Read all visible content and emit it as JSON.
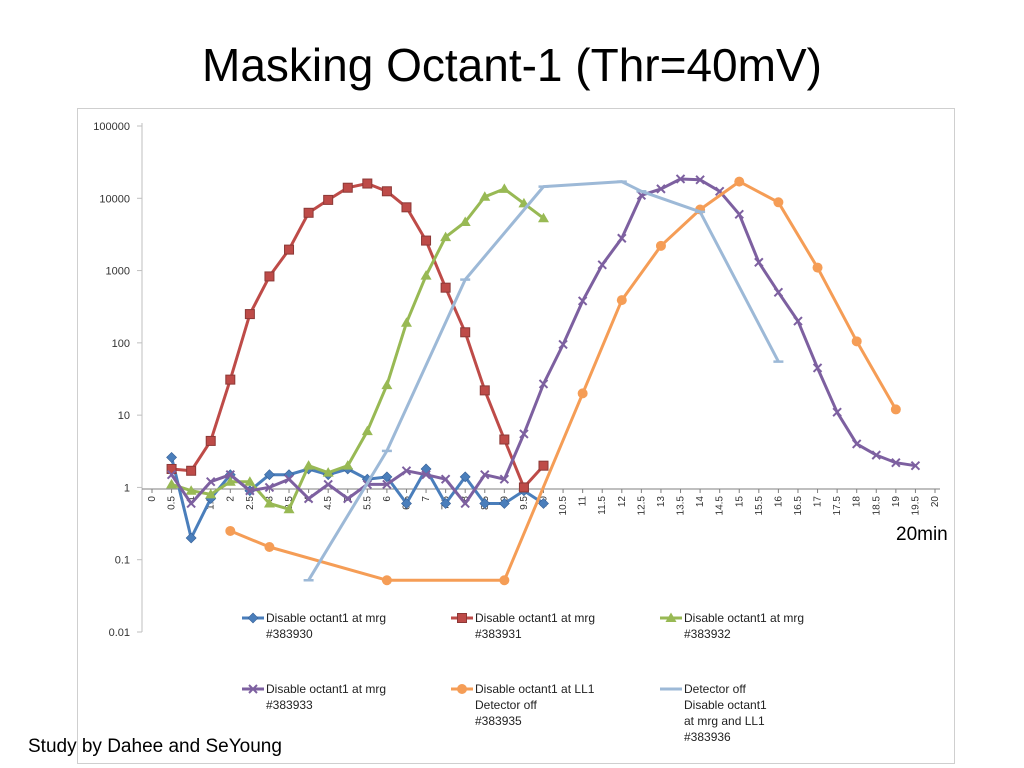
{
  "slide": {
    "title": "Masking Octant-1 (Thr=40mV)",
    "unit_note": "20min",
    "credit": "Study by Dahee and SeYoung"
  },
  "chart_data": {
    "type": "line",
    "yscale": "log",
    "ylim": [
      0.01,
      100000
    ],
    "yticks": [
      "0.01",
      "0.1",
      "1",
      "10",
      "100",
      "1000",
      "10000",
      "100000"
    ],
    "xlim": [
      0,
      20
    ],
    "xticks": [
      "0",
      "0.5",
      "1",
      "1.5",
      "2",
      "2.5",
      "3",
      "3.5",
      "4",
      "4.5",
      "5",
      "5.5",
      "6",
      "6.5",
      "7",
      "7.5",
      "8",
      "8.5",
      "9",
      "9.5",
      "10",
      "10.5",
      "11",
      "11.5",
      "12",
      "12.5",
      "13",
      "13.5",
      "14",
      "14.5",
      "15",
      "15.5",
      "16",
      "16.5",
      "17",
      "17.5",
      "18",
      "18.5",
      "19",
      "19.5",
      "20"
    ],
    "legend_position": "bottom",
    "series": [
      {
        "name": "Disable octant1 at mrg #383930",
        "legend_lines": [
          "Disable octant1 at mrg",
          "#383930"
        ],
        "color": "#4a7ebb",
        "marker": "diamond",
        "x": [
          0.5,
          1,
          1.5,
          2,
          2.5,
          3,
          3.5,
          4,
          4.5,
          5,
          5.5,
          6,
          6.5,
          7,
          7.5,
          8,
          8.5,
          9,
          9.5,
          10
        ],
        "y": [
          2.6,
          0.2,
          0.7,
          1.5,
          0.9,
          1.5,
          1.5,
          1.8,
          1.5,
          1.8,
          1.3,
          1.4,
          0.6,
          1.8,
          0.6,
          1.4,
          0.6,
          0.6,
          0.9,
          0.6
        ]
      },
      {
        "name": "Disable octant1 at mrg #383931",
        "legend_lines": [
          "Disable octant1 at mrg",
          "#383931"
        ],
        "color": "#be4b48",
        "marker": "square",
        "x": [
          0.5,
          1,
          1.5,
          2,
          2.5,
          3,
          3.5,
          4,
          4.5,
          5,
          5.5,
          6,
          6.5,
          7,
          7.5,
          8,
          8.5,
          9,
          9.5,
          10
        ],
        "y": [
          1.8,
          1.7,
          4.4,
          31,
          250,
          830,
          1950,
          6300,
          9500,
          14000,
          16000,
          12500,
          7500,
          2600,
          580,
          140,
          22,
          4.6,
          1.0,
          2.0
        ]
      },
      {
        "name": "Disable octant1 at mrg #383932",
        "legend_lines": [
          "Disable octant1 at mrg",
          "#383932"
        ],
        "color": "#98b954",
        "marker": "triangle",
        "x": [
          0.5,
          1,
          1.5,
          2,
          2.5,
          3,
          3.5,
          4,
          4.5,
          5,
          5.5,
          6,
          6.5,
          7,
          7.5,
          8,
          8.5,
          9,
          9.5,
          10
        ],
        "y": [
          1.1,
          0.9,
          0.8,
          1.2,
          1.2,
          0.6,
          0.5,
          2.0,
          1.6,
          2.0,
          6.0,
          26,
          190,
          850,
          2900,
          4700,
          10500,
          13500,
          8500,
          5300
        ]
      },
      {
        "name": "Disable octant1 at mrg #383933",
        "legend_lines": [
          "Disable octant1 at mrg",
          "#383933"
        ],
        "color": "#7d60a0",
        "marker": "x",
        "x": [
          0.5,
          1,
          1.5,
          2,
          2.5,
          3,
          3.5,
          4,
          4.5,
          5,
          5.5,
          6,
          6.5,
          7,
          7.5,
          8,
          8.5,
          9,
          9.5,
          10,
          10.5,
          11,
          11.5,
          12,
          12.5,
          13,
          13.5,
          14,
          14.5,
          15,
          15.5,
          16,
          16.5,
          17,
          17.5,
          18,
          18.5,
          19,
          19.5
        ],
        "y": [
          1.5,
          0.6,
          1.2,
          1.5,
          0.9,
          1.0,
          1.3,
          0.7,
          1.1,
          0.7,
          1.1,
          1.1,
          1.7,
          1.5,
          1.3,
          0.6,
          1.5,
          1.3,
          5.5,
          27,
          95,
          380,
          1200,
          2800,
          11000,
          13500,
          18500,
          18000,
          12500,
          6000,
          1300,
          500,
          200,
          45,
          11,
          4.0,
          2.8,
          2.2,
          2.0
        ]
      },
      {
        "name": "Disable octant1 at LL1 Detector off #383935",
        "legend_lines": [
          "Disable octant1 at LL1",
          "Detector off",
          "#383935"
        ],
        "color": "#f59d56",
        "marker": "circle",
        "x": [
          2,
          3,
          6,
          9,
          11,
          12,
          13,
          14,
          15,
          16,
          17,
          18,
          19
        ],
        "y": [
          0.25,
          0.15,
          0.052,
          0.052,
          20,
          390,
          2200,
          7000,
          17000,
          8800,
          1100,
          105,
          12
        ]
      },
      {
        "name": "Detector off Disable octant1 at mrg and LL1 #383936",
        "legend_lines": [
          "Detector off",
          "Disable octant1",
          "at mrg and LL1",
          "#383936"
        ],
        "color": "#9db9d7",
        "marker": "dash",
        "x": [
          4,
          6,
          8,
          10,
          12,
          12.5,
          14,
          16
        ],
        "y": [
          0.052,
          3.2,
          750,
          14500,
          17000,
          12500,
          6500,
          55
        ]
      }
    ]
  }
}
